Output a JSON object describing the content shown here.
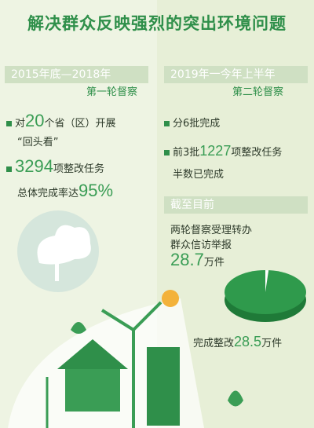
{
  "title": "解决群众反映强烈的突出环境问题",
  "left": {
    "period": "2015年底—2018年",
    "round": "第一轮督察",
    "item1_a": "对",
    "item1_num": "20",
    "item1_b": "个省（区）开展",
    "item1_c": "“回头看”",
    "item2_num": "3294",
    "item2_a": "项整改任务",
    "item2_b": "总体完成率达",
    "item2_pct": "95%"
  },
  "right": {
    "period": "2019年一今年上半年",
    "round": "第二轮督察",
    "item1": "分6批完成",
    "item2_a": "前3批",
    "item2_num": "1227",
    "item2_b": "项整改任务",
    "item2_c": "半数已完成",
    "date_tag": "截至目前",
    "stat1_a": "两轮督察受理转办",
    "stat1_b": "群众信访举报",
    "stat1_num": "28.7",
    "stat1_unit": "万件",
    "stat2_a": "完成整改",
    "stat2_num": "28.5",
    "stat2_unit": "万件"
  },
  "colors": {
    "accent": "#2f8f4a",
    "pie_main": "#2f9a4c",
    "pie_slice": "#ffffff"
  },
  "chart_data": {
    "type": "pie",
    "slices": [
      {
        "value": 28.5
      },
      {
        "value": 0.2
      }
    ]
  }
}
